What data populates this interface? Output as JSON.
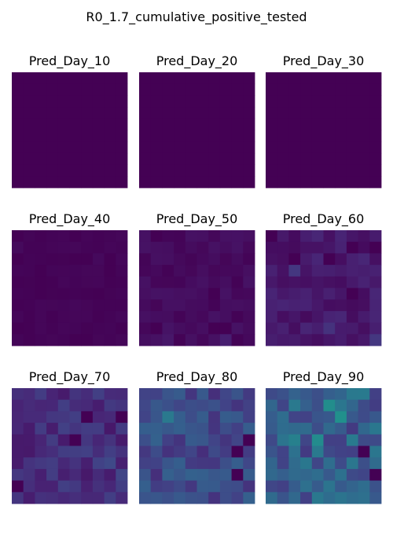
{
  "chart_data": {
    "type": "heatmap",
    "title": "R0_1.7_cumulative_positive_tested",
    "colormap": "viridis",
    "value_range": [
      0,
      1
    ],
    "grid_size": [
      10,
      10
    ],
    "panels": [
      {
        "title": "Pred_Day_10",
        "level": 0.0,
        "spread": 0.0,
        "seed": 1
      },
      {
        "title": "Pred_Day_20",
        "level": 0.0,
        "spread": 0.0,
        "seed": 2
      },
      {
        "title": "Pred_Day_30",
        "level": 0.0,
        "spread": 0.0,
        "seed": 3
      },
      {
        "title": "Pred_Day_40",
        "level": 0.01,
        "spread": 0.012,
        "seed": 4
      },
      {
        "title": "Pred_Day_50",
        "level": 0.035,
        "spread": 0.03,
        "seed": 5
      },
      {
        "title": "Pred_Day_60",
        "level": 0.085,
        "spread": 0.05,
        "seed": 6
      },
      {
        "title": "Pred_Day_70",
        "level": 0.16,
        "spread": 0.08,
        "seed": 7
      },
      {
        "title": "Pred_Day_80",
        "level": 0.27,
        "spread": 0.12,
        "seed": 8
      },
      {
        "title": "Pred_Day_90",
        "level": 0.36,
        "spread": 0.15,
        "seed": 9
      }
    ]
  }
}
